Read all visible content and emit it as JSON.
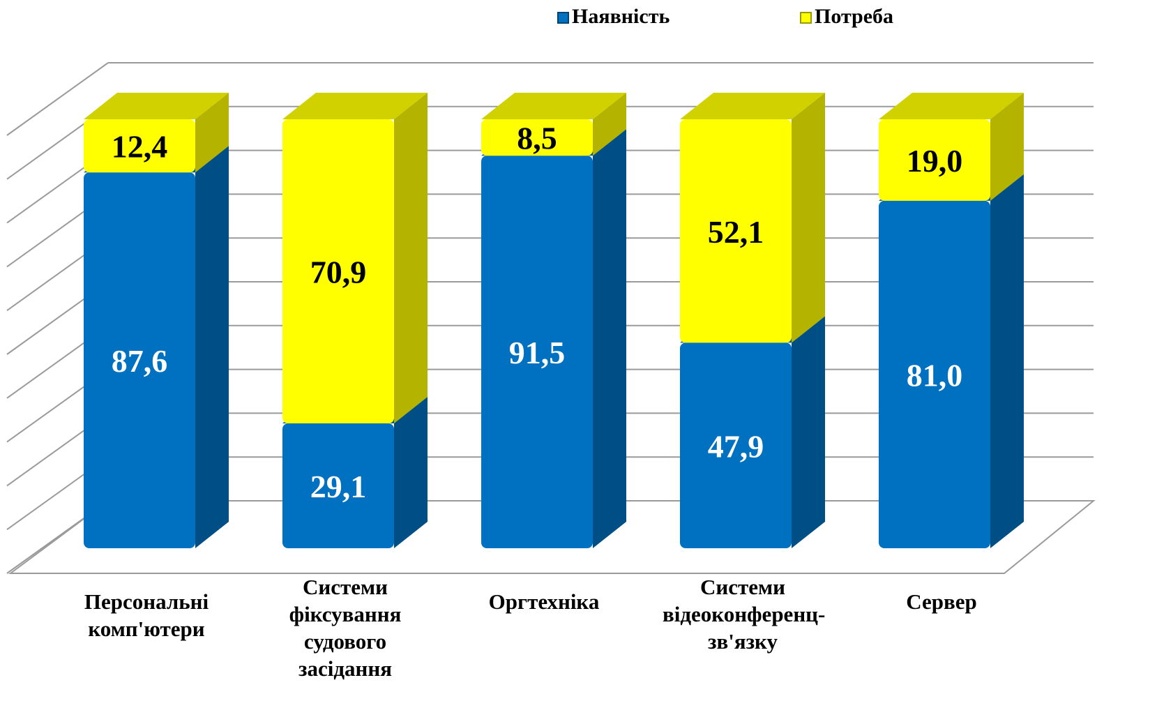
{
  "chart_data": {
    "type": "bar3d_stacked",
    "categories": [
      "Персональні комп'ютери",
      "Системи фіксування судового засідання",
      "Оргтехніка",
      "Системи відеоконференц-зв'язку",
      "Сервер"
    ],
    "series": [
      {
        "name": "Наявність",
        "color": "#0070c0",
        "values": [
          87.6,
          29.1,
          91.5,
          47.9,
          81.0
        ],
        "value_labels": [
          "87,6",
          "29,1",
          "91,5",
          "47,9",
          "81,0"
        ]
      },
      {
        "name": "Потреба",
        "color": "#ffff00",
        "values": [
          12.4,
          70.9,
          8.5,
          52.1,
          19.0
        ],
        "value_labels": [
          "12,4",
          "70,9",
          "8,5",
          "52,1",
          "19,0"
        ]
      }
    ],
    "ylim": [
      0,
      100
    ],
    "yticks": [
      0,
      10,
      20,
      30,
      40,
      50,
      60,
      70,
      80,
      90,
      100
    ],
    "grid": true,
    "legend": "top"
  }
}
